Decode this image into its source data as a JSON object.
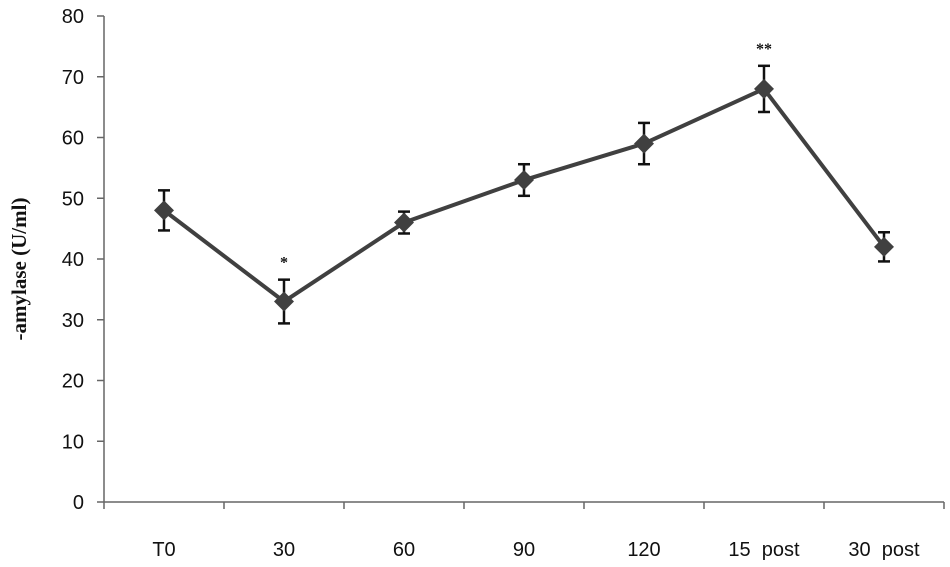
{
  "chart_data": {
    "type": "line",
    "title": "",
    "xlabel": "",
    "ylabel": "-amylase (U/ml)",
    "categories": [
      "T0",
      "30",
      "60",
      "90",
      "120",
      "15  post",
      "30  post"
    ],
    "series": [
      {
        "values": [
          48,
          33,
          46,
          53,
          59,
          68,
          42
        ],
        "error": [
          3.3,
          3.6,
          1.8,
          2.6,
          3.4,
          3.8,
          2.4
        ],
        "color": "#404040"
      }
    ],
    "annotations": [
      "",
      "*",
      "",
      "",
      "",
      "**",
      ""
    ],
    "ylim": [
      0,
      80
    ],
    "yticks": [
      0,
      10,
      20,
      30,
      40,
      50,
      60,
      70,
      80
    ],
    "grid": false,
    "legend": "none"
  }
}
